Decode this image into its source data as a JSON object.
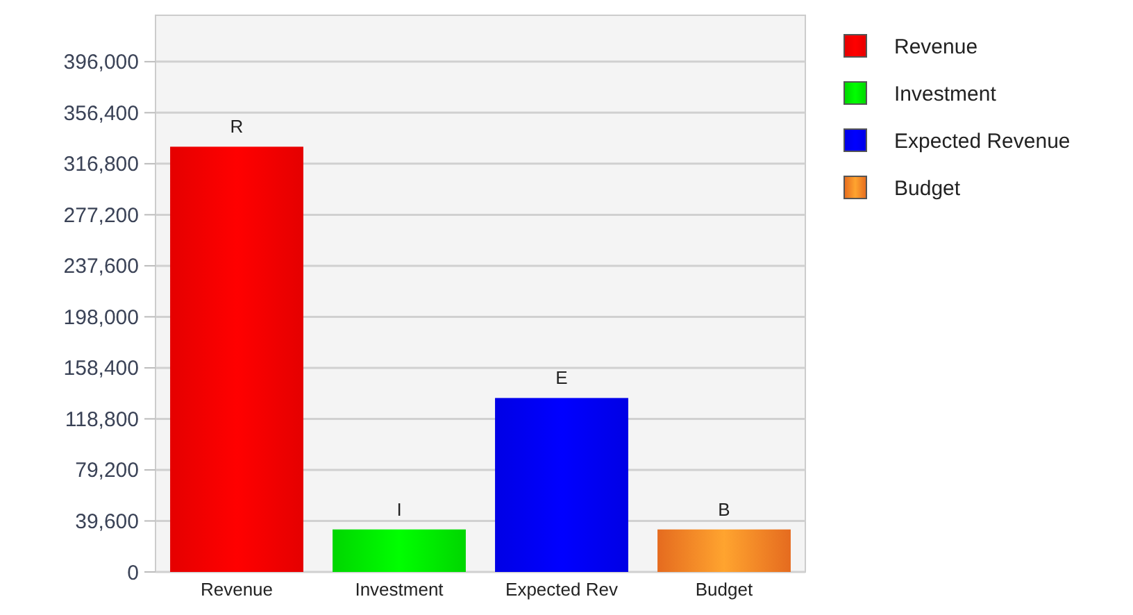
{
  "chart_data": {
    "type": "bar",
    "categories": [
      "Revenue",
      "Investment",
      "Expected Rev",
      "Budget"
    ],
    "series": [
      {
        "name": "Revenue",
        "color": "#ff0000",
        "values": [
          330000,
          null,
          null,
          null
        ]
      },
      {
        "name": "Investment",
        "color": "#00ee00",
        "values": [
          null,
          33000,
          null,
          null
        ]
      },
      {
        "name": "Expected Revenue",
        "color": "#0000ff",
        "values": [
          null,
          null,
          135000,
          null
        ]
      },
      {
        "name": "Budget",
        "color": "#ff7722",
        "values": [
          null,
          null,
          null,
          33000
        ]
      }
    ],
    "value_labels": [
      "R",
      "I",
      "E",
      "B"
    ],
    "ylim": [
      0,
      432000
    ],
    "yticks": [
      {
        "value": 0,
        "label": "0"
      },
      {
        "value": 39600,
        "label": "39,600"
      },
      {
        "value": 79200,
        "label": "79,200"
      },
      {
        "value": 118800,
        "label": "118,800"
      },
      {
        "value": 158400,
        "label": "158,400"
      },
      {
        "value": 198000,
        "label": "198,000"
      },
      {
        "value": 237600,
        "label": "237,600"
      },
      {
        "value": 277200,
        "label": "277,200"
      },
      {
        "value": 316800,
        "label": "316,800"
      },
      {
        "value": 356400,
        "label": "356,400"
      },
      {
        "value": 396000,
        "label": "396,000"
      }
    ],
    "grid": "y",
    "legend": "right"
  }
}
